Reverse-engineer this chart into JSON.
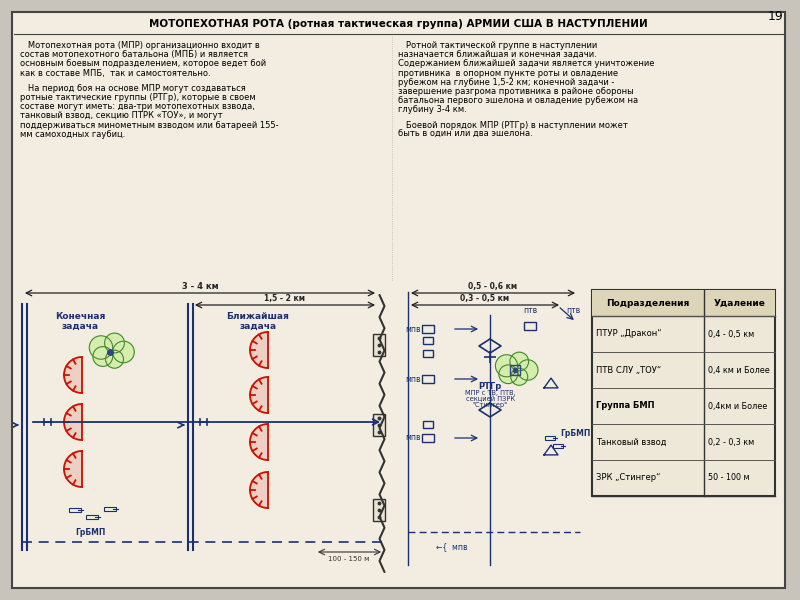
{
  "title": "МОТОПЕХОТНАЯ РОТА (ротная тактическая группа) АРМИИ США В НАСТУПЛЕНИИ",
  "bg_color": "#f2ede0",
  "page_bg": "#c8c4bc",
  "blue": "#1a3070",
  "red": "#cc1100",
  "green_fill": "#d4eeaa",
  "green_edge": "#448830",
  "page_number": "19",
  "dim_3_4km": "3 - 4 км",
  "dim_1_5_2km": "1,5 - 2 км",
  "dim_05_06km": "0,5 - 0,6 км",
  "dim_03_05km": "0,3 - 0,5 км",
  "dim_100_150m": "100 - 150 м",
  "para1_left": [
    "   Мотопехотная рота (МПР) организационно входит в",
    "состав мотопехотного батальона (МПБ) и является",
    "основным боевым подразделением, которое ведет бой",
    "как в составе МПБ,  так и самостоятельно."
  ],
  "para2_left": [
    "   На период боя на основе МПР могут создаваться",
    "ротные тактические группы (РТГр), которые в своем",
    "составе могут иметь: два-три мотопехотных взвода,",
    "танковый взвод, секцию ПТРК «ТОУ», и могут",
    "поддерживаться минометным взводом или батареей 155-",
    "мм самоходных гаубиц."
  ],
  "para3_right": [
    "   Ротной тактической группе в наступлении",
    "назначается ближайшая и конечная задачи.",
    "Содержанием ближайшей задачи является уничтожение",
    "противника  в опорном пункте роты и овладение",
    "рубежом на глубине 1,5-2 км; конечной задачи -",
    "завершение разгрома противника в районе обороны",
    "батальона первого эшелона и овладение рубежом на",
    "глубину 3-4 км."
  ],
  "para4_right": [
    "   Боевой порядок МПР (РТГр) в наступлении может",
    "быть в один или два эшелона."
  ],
  "table_headers": [
    "Подразделения",
    "Удаление"
  ],
  "table_rows": [
    [
      "ПТУР „Дракон“",
      "0,4 - 0,5 км"
    ],
    [
      "ПТВ СЛУ „ТОУ“",
      "0,4 км и Более"
    ],
    [
      "Группа БМП",
      "0,4км и Более"
    ],
    [
      "Танковый взвод",
      "0,2 - 0,3 км"
    ],
    [
      "ЗРК „Стингер“",
      "50 - 100 м"
    ]
  ]
}
